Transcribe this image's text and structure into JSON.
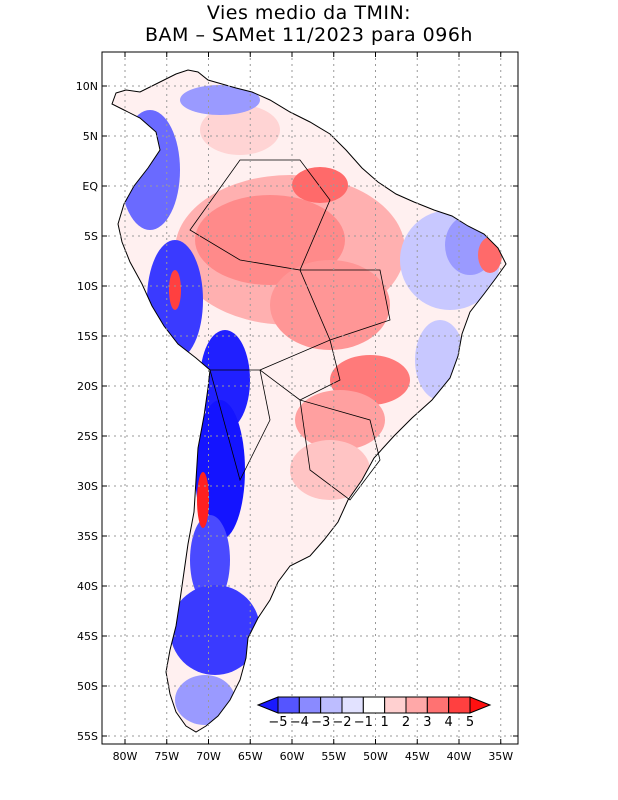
{
  "title": {
    "line1": "Vies medio da TMIN:",
    "line2": "BAM – SAMet 11/2023  para 096h"
  },
  "lat_ticks": [
    {
      "label": "10N",
      "value": 10
    },
    {
      "label": "5N",
      "value": 5
    },
    {
      "label": "EQ",
      "value": 0
    },
    {
      "label": "5S",
      "value": -5
    },
    {
      "label": "10S",
      "value": -10
    },
    {
      "label": "15S",
      "value": -15
    },
    {
      "label": "20S",
      "value": -20
    },
    {
      "label": "25S",
      "value": -25
    },
    {
      "label": "30S",
      "value": -30
    },
    {
      "label": "35S",
      "value": -35
    },
    {
      "label": "40S",
      "value": -40
    },
    {
      "label": "45S",
      "value": -45
    },
    {
      "label": "50S",
      "value": -50
    },
    {
      "label": "55S",
      "value": -55
    }
  ],
  "lon_ticks": [
    {
      "label": "80W",
      "value": -80
    },
    {
      "label": "75W",
      "value": -75
    },
    {
      "label": "70W",
      "value": -70
    },
    {
      "label": "65W",
      "value": -65
    },
    {
      "label": "60W",
      "value": -60
    },
    {
      "label": "55W",
      "value": -55
    },
    {
      "label": "50W",
      "value": -50
    },
    {
      "label": "45W",
      "value": -45
    },
    {
      "label": "40W",
      "value": -40
    },
    {
      "label": "35W",
      "value": -35
    }
  ],
  "colorbar": {
    "labels": [
      "−5",
      "−4",
      "−3",
      "−2",
      "−1",
      "1",
      "2",
      "3",
      "4",
      "5"
    ],
    "colors": [
      "#1a1aff",
      "#5555ff",
      "#8a8aff",
      "#bdbdff",
      "#e2e2ff",
      "#ffffff",
      "#ffd0d0",
      "#ffa8a8",
      "#ff7272",
      "#ff4040",
      "#ff1010"
    ]
  }
}
